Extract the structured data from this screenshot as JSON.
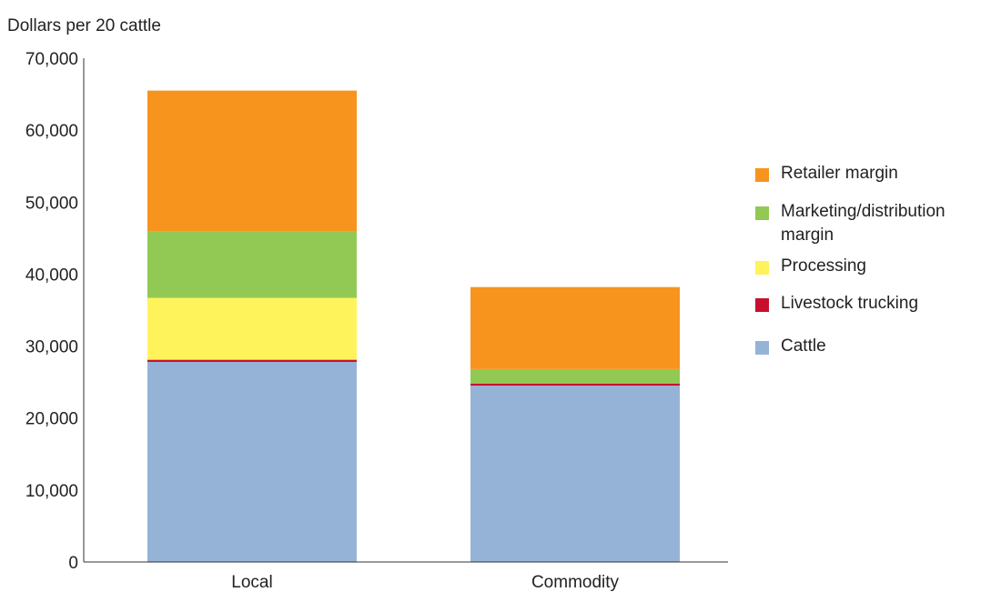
{
  "chart_data": {
    "type": "bar",
    "stacked": true,
    "ylabel": "Dollars per 20 cattle",
    "categories": [
      "Local",
      "Commodity"
    ],
    "ylim": [
      0,
      70000
    ],
    "yticks": [
      0,
      10000,
      20000,
      30000,
      40000,
      50000,
      60000,
      70000
    ],
    "ytick_labels": [
      "0",
      "10,000",
      "20,000",
      "30,000",
      "40,000",
      "50,000",
      "60,000",
      "70,000"
    ],
    "grid": false,
    "legend_position": "right",
    "series": [
      {
        "name": "Cattle",
        "color": "#95b3d7",
        "values": [
          27800,
          24500
        ]
      },
      {
        "name": "Livestock trucking",
        "color": "#c8102e",
        "values": [
          300,
          300
        ]
      },
      {
        "name": "Processing",
        "color": "#fff35c",
        "values": [
          8600,
          0
        ]
      },
      {
        "name": "Marketing/distribution margin",
        "color": "#92c955",
        "values": [
          9200,
          2000
        ]
      },
      {
        "name": "Retailer margin",
        "color": "#f7941d",
        "values": [
          19600,
          11400
        ]
      }
    ],
    "legend_order": [
      "Retailer margin",
      "Marketing/distribution margin",
      "Processing",
      "Livestock trucking",
      "Cattle"
    ]
  }
}
